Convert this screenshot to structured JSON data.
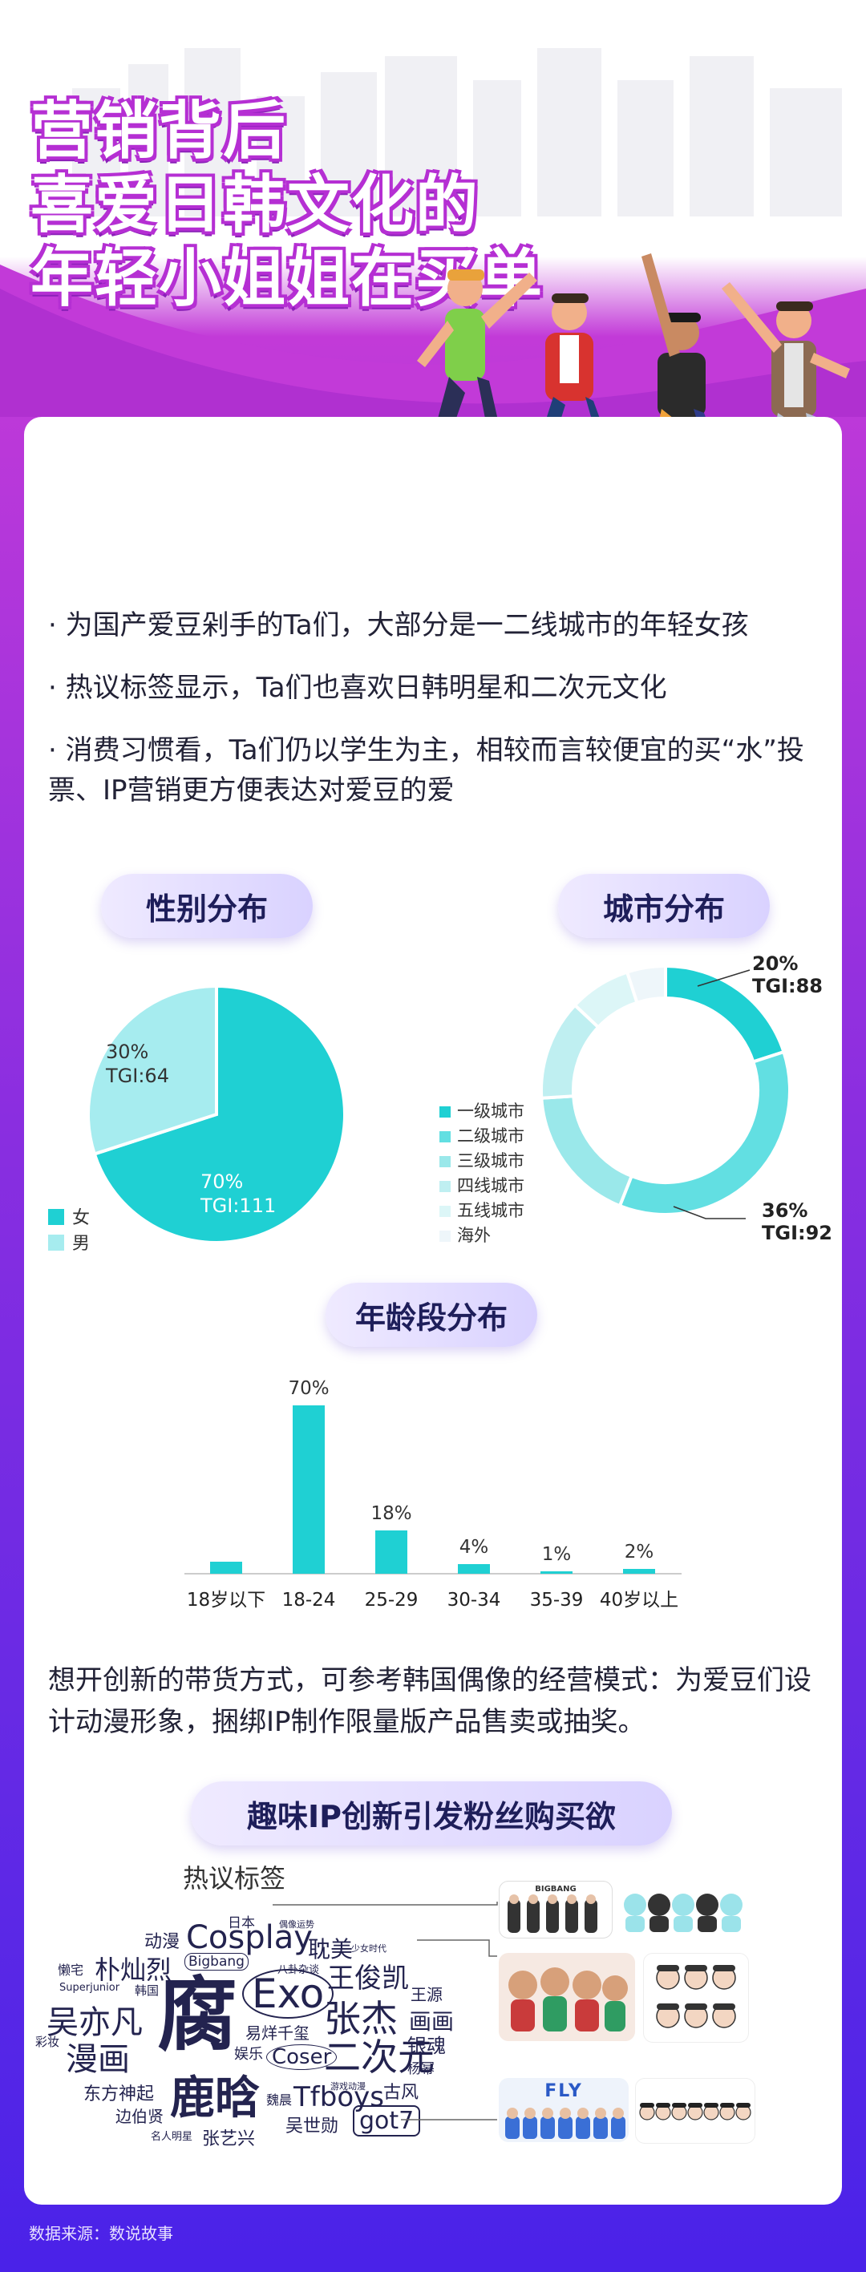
{
  "hero": {
    "title_lines": [
      "营销背后",
      "喜爱日韩文化的",
      "年轻小姐姐在买单"
    ]
  },
  "bullets": [
    "· 为国产爱豆剁手的Ta们，大部分是一二线城市的年轻女孩",
    "· 热议标签显示，Ta们也喜欢日韩明星和二次元文化",
    "· 消费习惯看，Ta们仍以学生为主，相较而言较便宜的买“水”投票、IP营销更方便表达对爱豆的爱"
  ],
  "sections": {
    "gender_title": "性别分布",
    "city_title": "城市分布",
    "age_title": "年龄段分布",
    "ip_title": "趣味IP创新引发粉丝购买欲",
    "tags_title": "热议标签"
  },
  "colors": {
    "accent": "#1fd0d3",
    "accent_light": "#a6ecef",
    "purple": "#b52fd3"
  },
  "chart_data": [
    {
      "type": "pie",
      "title": "性别分布",
      "categories": [
        "女",
        "男"
      ],
      "values": [
        70,
        30
      ],
      "labels": [
        "70%\nTGI:111",
        "30%\nTGI:64"
      ],
      "colors": [
        "#1fd0d3",
        "#a6ecef"
      ],
      "legend": "bottom-left"
    },
    {
      "type": "pie",
      "subtype": "donut",
      "title": "城市分布",
      "categories": [
        "一级城市",
        "二级城市",
        "三级城市",
        "四线城市",
        "五线城市",
        "海外"
      ],
      "values": [
        20,
        36,
        18,
        13,
        8,
        5
      ],
      "annotations": [
        {
          "category": "一级城市",
          "text": "20%\nTGI:88"
        },
        {
          "category": "二级城市",
          "text": "36%\nTGI:92"
        }
      ],
      "colors": [
        "#1fd0d3",
        "#62dfe2",
        "#9ae8ea",
        "#bfeff1",
        "#dcf6f7",
        "#eef6fa"
      ],
      "legend": "left"
    },
    {
      "type": "bar",
      "title": "年龄段分布",
      "categories": [
        "18岁以下",
        "18-24",
        "25-29",
        "30-34",
        "35-39",
        "40岁以上"
      ],
      "values": [
        5,
        70,
        18,
        4,
        1,
        2
      ],
      "data_labels": [
        "",
        "70%",
        "18%",
        "4%",
        "1%",
        "2%"
      ],
      "ylim": [
        0,
        75
      ],
      "color": "#1fd0d3"
    }
  ],
  "note": "想开创新的带货方式，可参考韩国偶像的经营模式：为爱豆们设计动漫形象，捆绑IP制作限量版产品售卖或抽奖。",
  "word_cloud": [
    "日本",
    "偶像运势",
    "动漫",
    "Cosplay",
    "耽美",
    "少女时代",
    "懒宅",
    "朴灿烈",
    "Bigbang",
    "八卦杂谈",
    "王俊凯",
    "Superjunior",
    "韩国",
    "腐",
    "Exo",
    "王源",
    "吴亦凡",
    "易烊千玺",
    "张杰",
    "画画",
    "彩妆",
    "漫画",
    "娱乐",
    "Coser",
    "二次元",
    "银魂",
    "游戏动漫",
    "杨幂",
    "东方神起",
    "魏晨",
    "Tfboys",
    "古风",
    "边伯贤",
    "鹿晗",
    "吴世勋",
    "got7",
    "名人明星",
    "张艺兴"
  ],
  "thumbs": [
    "BIGBANG",
    "FLY"
  ],
  "source": "数据来源：数说故事"
}
